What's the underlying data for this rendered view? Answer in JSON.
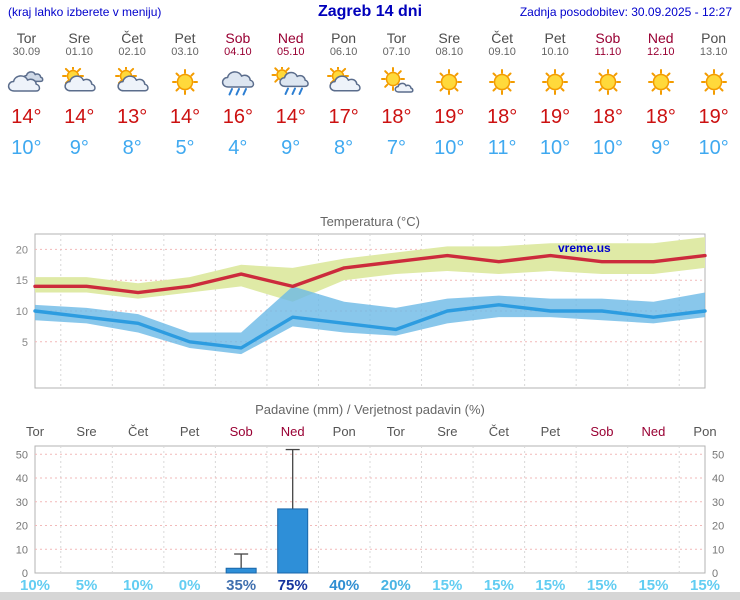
{
  "header": {
    "hint": "(kraj lahko izberete v meniju)",
    "title": "Zagreb 14 dni",
    "updated": "Zadnja posodobitev: 30.09.2025 - 12:27"
  },
  "colors": {
    "accent_blue": "#0000cc",
    "weekend_red": "#990033",
    "high_temp_red": "#cc1111",
    "low_temp_blue": "#3fa9f0"
  },
  "days": [
    {
      "name": "Tor",
      "date": "30.09",
      "weekend": false,
      "icon": "cloudy",
      "high": "14°",
      "low": "10°"
    },
    {
      "name": "Sre",
      "date": "01.10",
      "weekend": false,
      "icon": "partly",
      "high": "14°",
      "low": "9°"
    },
    {
      "name": "Čet",
      "date": "02.10",
      "weekend": false,
      "icon": "partly",
      "high": "13°",
      "low": "8°"
    },
    {
      "name": "Pet",
      "date": "03.10",
      "weekend": false,
      "icon": "sunny",
      "high": "14°",
      "low": "5°"
    },
    {
      "name": "Sob",
      "date": "04.10",
      "weekend": true,
      "icon": "rain",
      "high": "16°",
      "low": "4°"
    },
    {
      "name": "Ned",
      "date": "05.10",
      "weekend": true,
      "icon": "rain-sun",
      "high": "14°",
      "low": "9°"
    },
    {
      "name": "Pon",
      "date": "06.10",
      "weekend": false,
      "icon": "partly",
      "high": "17°",
      "low": "8°"
    },
    {
      "name": "Tor",
      "date": "07.10",
      "weekend": false,
      "icon": "mostly-sunny",
      "high": "18°",
      "low": "7°"
    },
    {
      "name": "Sre",
      "date": "08.10",
      "weekend": false,
      "icon": "sunny",
      "high": "19°",
      "low": "10°"
    },
    {
      "name": "Čet",
      "date": "09.10",
      "weekend": false,
      "icon": "sunny",
      "high": "18°",
      "low": "11°"
    },
    {
      "name": "Pet",
      "date": "10.10",
      "weekend": false,
      "icon": "sunny",
      "high": "19°",
      "low": "10°"
    },
    {
      "name": "Sob",
      "date": "11.10",
      "weekend": true,
      "icon": "sunny",
      "high": "18°",
      "low": "10°"
    },
    {
      "name": "Ned",
      "date": "12.10",
      "weekend": true,
      "icon": "sunny",
      "high": "18°",
      "low": "9°"
    },
    {
      "name": "Pon",
      "date": "13.10",
      "weekend": false,
      "icon": "sunny",
      "high": "19°",
      "low": "10°"
    }
  ],
  "chart_data": [
    {
      "type": "line",
      "title": "Temperatura (°C)",
      "watermark": "vreme.us",
      "ylim": [
        -2.5,
        22.5
      ],
      "yticks": [
        5,
        10,
        15,
        20
      ],
      "series": [
        {
          "name": "max-temp",
          "color": "#cc2b3c",
          "values": [
            14,
            14,
            13,
            14,
            16,
            14,
            17,
            18,
            19,
            18,
            19,
            18,
            18,
            19
          ]
        },
        {
          "name": "min-temp",
          "color": "#2d9ce0",
          "values": [
            10,
            9,
            8,
            5,
            4,
            9,
            8,
            7,
            10,
            11,
            10,
            10,
            9,
            10
          ]
        }
      ],
      "bands": [
        {
          "name": "max-range",
          "color": "#dfeaa6",
          "opacity": 1,
          "hi": [
            15.5,
            15.5,
            14.5,
            15.5,
            17.5,
            17,
            18.5,
            19.5,
            20.5,
            20.5,
            21,
            21,
            21,
            22
          ],
          "lo": [
            13,
            13,
            12,
            13,
            14,
            11.5,
            15,
            16,
            16.5,
            16,
            16.5,
            16,
            16,
            17
          ]
        },
        {
          "name": "min-range",
          "color": "#6cb9e6",
          "opacity": 0.8,
          "hi": [
            11,
            10.5,
            9.5,
            6.5,
            6.5,
            14,
            11.5,
            10.5,
            12,
            12.5,
            12,
            12,
            11.5,
            13
          ],
          "lo": [
            8.5,
            8,
            6.5,
            4,
            3,
            7.5,
            6.5,
            6,
            8,
            9,
            9,
            8.5,
            8,
            9
          ]
        }
      ]
    },
    {
      "type": "bar",
      "title": "Padavine (mm) / Verjetnost padavin (%)",
      "categories": [
        "Tor",
        "Sre",
        "Čet",
        "Pet",
        "Sob",
        "Ned",
        "Pon",
        "Tor",
        "Sre",
        "Čet",
        "Pet",
        "Sob",
        "Ned",
        "Pon"
      ],
      "weekend_flags": [
        false,
        false,
        false,
        false,
        true,
        true,
        false,
        false,
        false,
        false,
        false,
        true,
        true,
        false
      ],
      "values": [
        0,
        0,
        0,
        0,
        2,
        27,
        0,
        0,
        0,
        0,
        0,
        0,
        0,
        0
      ],
      "whisker_hi": [
        0,
        0,
        0,
        0,
        8,
        52,
        0,
        0,
        0,
        0,
        0,
        0,
        0,
        0
      ],
      "ylim": [
        0,
        53.5
      ],
      "yticks": [
        0,
        10,
        20,
        30,
        40,
        50
      ],
      "bar_color": "#2e8fd8",
      "probabilities": [
        {
          "label": "10%",
          "color": "#62cdf2"
        },
        {
          "label": "5%",
          "color": "#62cdf2"
        },
        {
          "label": "10%",
          "color": "#62cdf2"
        },
        {
          "label": "0%",
          "color": "#62cdf2"
        },
        {
          "label": "35%",
          "color": "#3f6fae"
        },
        {
          "label": "75%",
          "color": "#16339e"
        },
        {
          "label": "40%",
          "color": "#2f8ed2"
        },
        {
          "label": "20%",
          "color": "#49b4e4"
        },
        {
          "label": "15%",
          "color": "#62cdf2"
        },
        {
          "label": "15%",
          "color": "#62cdf2"
        },
        {
          "label": "15%",
          "color": "#62cdf2"
        },
        {
          "label": "15%",
          "color": "#62cdf2"
        },
        {
          "label": "15%",
          "color": "#62cdf2"
        },
        {
          "label": "15%",
          "color": "#62cdf2"
        }
      ]
    }
  ]
}
